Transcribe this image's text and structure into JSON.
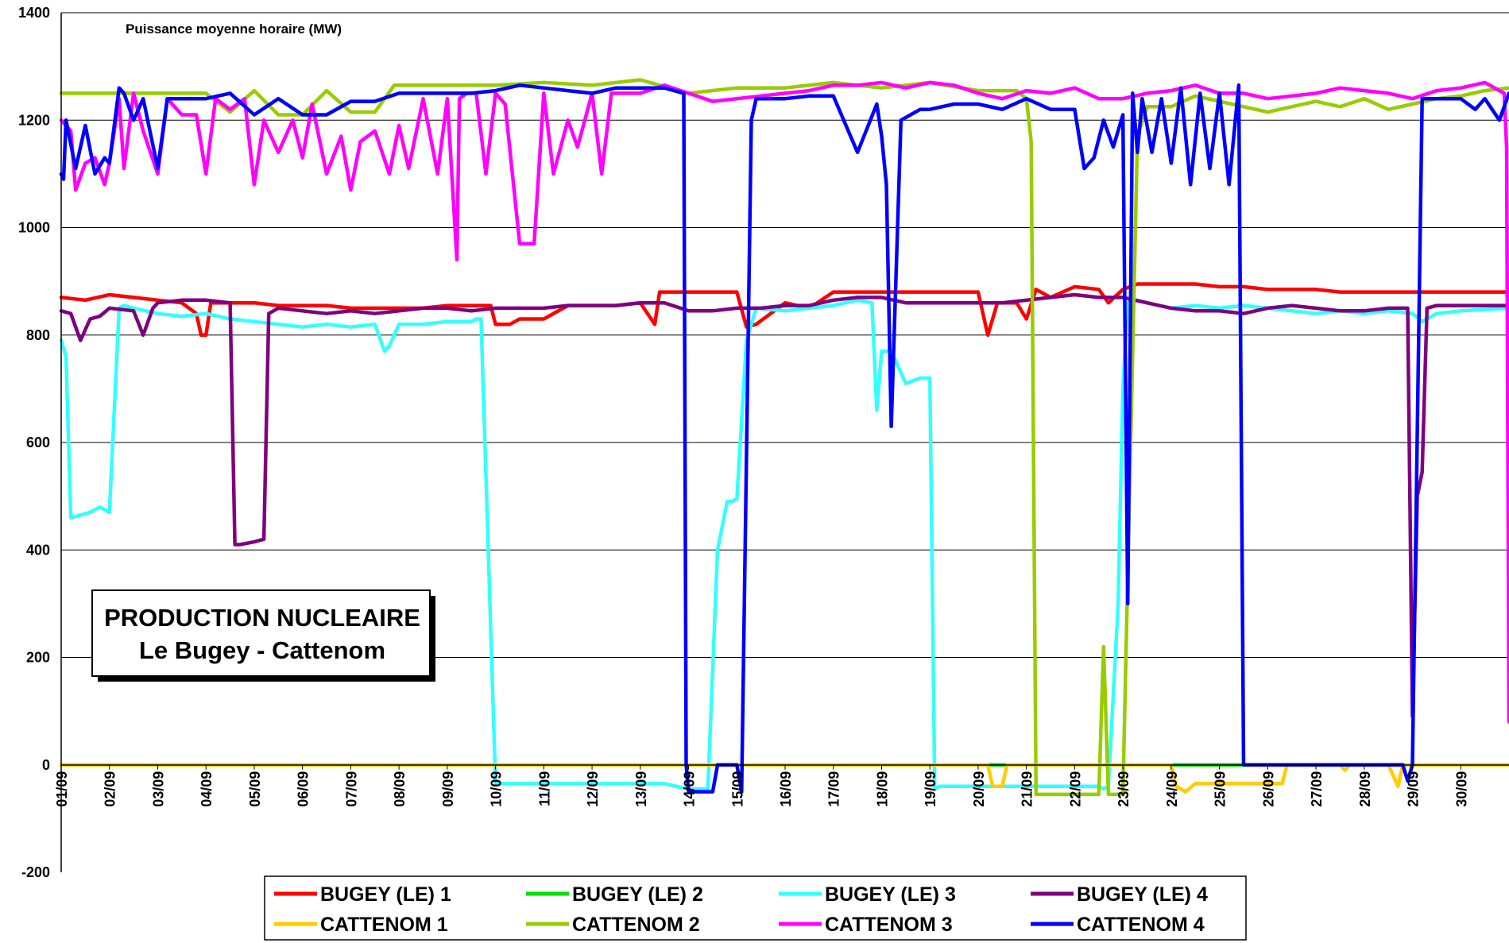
{
  "chart_data": {
    "type": "line",
    "ylabel": "Puissance moyenne horaire (MW)",
    "annotation": [
      "PRODUCTION NUCLEAIRE",
      "Le Bugey - Cattenom"
    ],
    "ylim": [
      -200,
      1400
    ],
    "yticks": [
      -200,
      0,
      200,
      400,
      600,
      800,
      1000,
      1200,
      1400
    ],
    "xlim": [
      1,
      31
    ],
    "categories": [
      "01/09",
      "02/09",
      "03/09",
      "04/09",
      "05/09",
      "06/09",
      "07/09",
      "08/09",
      "09/09",
      "10/09",
      "11/09",
      "12/09",
      "13/09",
      "14/09",
      "15/09",
      "16/09",
      "17/09",
      "18/09",
      "19/09",
      "20/09",
      "21/09",
      "22/09",
      "23/09",
      "24/09",
      "25/09",
      "26/09",
      "27/09",
      "28/09",
      "29/09",
      "30/09"
    ],
    "grid": "horizontal",
    "legend_position": "bottom",
    "series": [
      {
        "name": "BUGEY (LE) 1",
        "color": "#ff0000",
        "x": [
          1,
          1.5,
          2,
          2.5,
          3,
          3.5,
          3.8,
          3.9,
          4.0,
          4.1,
          4.5,
          5,
          5.5,
          6,
          6.5,
          7,
          7.5,
          8,
          8.5,
          9,
          9.5,
          9.9,
          10,
          10.3,
          10.5,
          11,
          11.5,
          12,
          12.5,
          13,
          13.3,
          13.4,
          14,
          14.5,
          15,
          15.2,
          15.4,
          16,
          16.5,
          17,
          17.5,
          18,
          18.5,
          19,
          19.5,
          20,
          20.2,
          20.4,
          20.6,
          20.8,
          21.0,
          21.2,
          21.5,
          22,
          22.5,
          22.7,
          23,
          23.3,
          23.5,
          24,
          24.5,
          25,
          25.5,
          26,
          26.5,
          27,
          27.5,
          28,
          28.5,
          29,
          29.5,
          30,
          30.5,
          31
        ],
        "values": [
          870,
          865,
          875,
          870,
          865,
          860,
          840,
          800,
          800,
          860,
          860,
          860,
          855,
          855,
          855,
          850,
          850,
          850,
          850,
          855,
          855,
          855,
          820,
          820,
          830,
          830,
          855,
          855,
          855,
          860,
          820,
          880,
          880,
          880,
          880,
          815,
          820,
          860,
          850,
          880,
          880,
          880,
          880,
          880,
          880,
          880,
          800,
          860,
          860,
          860,
          830,
          885,
          870,
          890,
          885,
          860,
          885,
          895,
          895,
          895,
          895,
          890,
          890,
          885,
          885,
          885,
          880,
          880,
          880,
          880,
          880,
          880,
          880,
          880
        ]
      },
      {
        "name": "BUGEY (LE) 2",
        "color": "#00e000",
        "x": [
          1,
          20.3,
          20.5,
          21,
          24,
          24.5,
          25,
          25.5,
          26,
          27,
          28,
          29,
          30,
          31
        ],
        "values": [
          0,
          0,
          0,
          0,
          0,
          0,
          0,
          0,
          0,
          0,
          0,
          0,
          0,
          0
        ]
      },
      {
        "name": "BUGEY (LE) 3",
        "color": "#33ffff",
        "x": [
          1,
          1.1,
          1.2,
          1.4,
          1.6,
          1.8,
          2.0,
          2.2,
          2.3,
          2.5,
          3,
          3.5,
          4,
          4.5,
          5,
          5.5,
          6,
          6.5,
          7,
          7.5,
          7.7,
          7.8,
          8,
          8.5,
          9,
          9.5,
          9.6,
          9.7,
          10,
          11,
          12,
          12.5,
          13,
          13.5,
          14,
          14.1,
          14.2,
          14.4,
          14.6,
          14.8,
          14.9,
          15.0,
          15.2,
          15.4,
          16,
          16.5,
          17,
          17.5,
          17.8,
          17.9,
          18.0,
          18.1,
          18.2,
          18.5,
          18.8,
          19,
          19.1,
          19.2,
          20,
          21,
          22,
          22.5,
          22.6,
          22.7,
          22.9,
          23.0,
          23.1,
          23.3,
          23.5,
          24,
          24.5,
          25,
          25.5,
          26,
          26.5,
          27,
          27.5,
          28,
          28.5,
          29,
          29.2,
          29.5,
          30,
          31
        ],
        "values": [
          790,
          760,
          460,
          465,
          470,
          480,
          470,
          850,
          855,
          850,
          840,
          835,
          840,
          830,
          825,
          820,
          815,
          820,
          815,
          820,
          770,
          780,
          820,
          820,
          825,
          825,
          830,
          830,
          -35,
          -35,
          -35,
          -35,
          -35,
          -35,
          -45,
          -45,
          -45,
          -45,
          400,
          490,
          490,
          495,
          790,
          850,
          845,
          850,
          855,
          865,
          860,
          660,
          770,
          770,
          770,
          710,
          720,
          720,
          -45,
          -40,
          -40,
          -40,
          -40,
          -40,
          -45,
          -40,
          300,
          700,
          860,
          865,
          860,
          850,
          855,
          850,
          855,
          850,
          845,
          840,
          845,
          840,
          845,
          840,
          825,
          840,
          845,
          850
        ]
      },
      {
        "name": "BUGEY (LE) 4",
        "color": "#7f007f",
        "x": [
          1,
          1.2,
          1.4,
          1.6,
          1.8,
          2,
          2.5,
          2.7,
          2.9,
          3,
          3.5,
          4,
          4.5,
          4.6,
          4.7,
          5,
          5.2,
          5.3,
          5.5,
          6,
          6.5,
          7,
          7.5,
          8,
          8.5,
          9,
          9.5,
          10,
          10.5,
          11,
          11.5,
          12,
          12.5,
          13,
          13.5,
          14,
          14.5,
          15,
          15.5,
          16,
          16.5,
          17,
          17.5,
          18,
          18.5,
          19,
          19.5,
          20,
          20.5,
          21,
          21.5,
          22,
          22.5,
          23,
          23.5,
          24,
          24.5,
          25,
          25.5,
          26,
          26.5,
          27,
          27.5,
          28,
          28.5,
          28.9,
          29.0,
          29.1,
          29.2,
          29.3,
          29.5,
          30,
          30.5,
          31
        ],
        "values": [
          845,
          840,
          790,
          830,
          835,
          850,
          845,
          800,
          850,
          860,
          865,
          865,
          860,
          410,
          410,
          415,
          420,
          840,
          850,
          845,
          840,
          845,
          840,
          845,
          850,
          850,
          845,
          850,
          850,
          850,
          855,
          855,
          855,
          860,
          860,
          845,
          845,
          850,
          850,
          855,
          855,
          865,
          870,
          870,
          860,
          860,
          860,
          860,
          860,
          865,
          870,
          875,
          870,
          870,
          860,
          850,
          845,
          845,
          840,
          850,
          855,
          850,
          845,
          845,
          850,
          850,
          90,
          500,
          545,
          850,
          855,
          855,
          855,
          855
        ]
      },
      {
        "name": "CATTENOM 1",
        "color": "#ffcc00",
        "x": [
          1,
          20.2,
          20.3,
          20.5,
          20.6,
          21,
          24,
          24.1,
          24.3,
          24.5,
          25,
          25.5,
          26,
          26.3,
          26.4,
          26.5,
          27,
          27.5,
          27.6,
          27.7,
          28,
          28.5,
          28.7,
          28.8,
          29,
          30,
          31
        ],
        "values": [
          0,
          0,
          -40,
          -40,
          0,
          0,
          0,
          -40,
          -50,
          -35,
          -35,
          -35,
          -35,
          -35,
          0,
          0,
          0,
          0,
          -10,
          0,
          0,
          0,
          -40,
          0,
          0,
          0,
          0
        ]
      },
      {
        "name": "CATTENOM 2",
        "color": "#99cc00",
        "x": [
          1,
          2,
          3,
          3.5,
          4,
          4.5,
          5,
          5.5,
          6,
          6.5,
          7,
          7.5,
          7.9,
          8,
          9,
          10,
          11,
          12,
          13,
          14,
          15,
          16,
          17,
          18,
          19,
          20,
          20.5,
          20.8,
          21.0,
          21.1,
          21.2,
          21.5,
          22,
          22.5,
          22.6,
          22.7,
          23.0,
          23.3,
          23.5,
          24,
          24.5,
          25,
          25.5,
          26,
          26.5,
          27,
          27.5,
          28,
          28.5,
          29,
          29.5,
          30,
          30.5,
          31
        ],
        "values": [
          1250,
          1250,
          1250,
          1250,
          1250,
          1215,
          1255,
          1210,
          1210,
          1255,
          1215,
          1215,
          1265,
          1265,
          1265,
          1265,
          1270,
          1265,
          1275,
          1250,
          1260,
          1260,
          1270,
          1260,
          1270,
          1255,
          1255,
          1255,
          1240,
          1160,
          -55,
          -55,
          -55,
          -55,
          220,
          -55,
          -55,
          1170,
          1225,
          1225,
          1245,
          1235,
          1225,
          1215,
          1225,
          1235,
          1225,
          1240,
          1220,
          1230,
          1240,
          1245,
          1255,
          1260
        ]
      },
      {
        "name": "CATTENOM 3",
        "color": "#ff00ff",
        "x": [
          1,
          1.2,
          1.3,
          1.5,
          1.7,
          1.9,
          2.0,
          2.2,
          2.3,
          2.5,
          2.7,
          3.0,
          3.2,
          3.5,
          3.8,
          4.0,
          4.2,
          4.5,
          4.8,
          5.0,
          5.2,
          5.5,
          5.8,
          6.0,
          6.2,
          6.5,
          6.8,
          7.0,
          7.2,
          7.5,
          7.8,
          8.0,
          8.2,
          8.5,
          8.8,
          9.0,
          9.2,
          9.25,
          9.4,
          9.6,
          9.8,
          10.0,
          10.2,
          10.5,
          10.6,
          10.8,
          11.0,
          11.2,
          11.5,
          11.7,
          12.0,
          12.2,
          12.4,
          12.6,
          13,
          13.5,
          14,
          14.5,
          15,
          15.5,
          16,
          16.5,
          17,
          17.5,
          18,
          18.5,
          19,
          19.5,
          20,
          20.5,
          21,
          21.5,
          22,
          22.5,
          23,
          23.5,
          24,
          24.5,
          25,
          25.5,
          26,
          26.5,
          27,
          27.5,
          28,
          28.5,
          29,
          29.5,
          30,
          30.5,
          30.9,
          30.95,
          31
        ],
        "values": [
          1200,
          1180,
          1070,
          1120,
          1130,
          1080,
          1120,
          1240,
          1110,
          1250,
          1180,
          1100,
          1240,
          1210,
          1210,
          1100,
          1240,
          1220,
          1240,
          1080,
          1200,
          1140,
          1200,
          1130,
          1230,
          1100,
          1170,
          1070,
          1160,
          1180,
          1100,
          1190,
          1110,
          1240,
          1100,
          1240,
          940,
          1240,
          1250,
          1250,
          1100,
          1250,
          1230,
          970,
          970,
          970,
          1250,
          1100,
          1200,
          1150,
          1250,
          1100,
          1250,
          1250,
          1250,
          1265,
          1250,
          1235,
          1240,
          1245,
          1250,
          1255,
          1265,
          1265,
          1270,
          1260,
          1270,
          1265,
          1250,
          1240,
          1255,
          1250,
          1260,
          1240,
          1240,
          1250,
          1255,
          1265,
          1250,
          1250,
          1240,
          1245,
          1250,
          1260,
          1255,
          1250,
          1240,
          1255,
          1260,
          1270,
          1250,
          1150,
          80
        ]
      },
      {
        "name": "CATTENOM 4",
        "color": "#0000ff",
        "x": [
          1,
          1.05,
          1.1,
          1.3,
          1.5,
          1.7,
          1.9,
          2.0,
          2.2,
          2.3,
          2.5,
          2.7,
          3.0,
          3.2,
          3.3,
          3.5,
          4,
          4.5,
          5,
          5.5,
          6,
          6.5,
          7,
          7.5,
          8,
          8.5,
          9,
          9.5,
          10,
          10.5,
          11,
          11.5,
          12,
          12.5,
          13,
          13.5,
          13.9,
          13.95,
          14.0,
          14.1,
          14.5,
          14.6,
          15.0,
          15.1,
          15.3,
          15.4,
          15.6,
          16,
          16.5,
          17,
          17.5,
          17.9,
          18.0,
          18.1,
          18.2,
          18.4,
          18.6,
          18.8,
          19,
          19.5,
          20,
          20.5,
          21,
          21.5,
          22,
          22.2,
          22.4,
          22.6,
          22.8,
          23.0,
          23.1,
          23.2,
          23.3,
          23.4,
          23.6,
          23.8,
          24,
          24.2,
          24.4,
          24.6,
          24.8,
          25,
          25.2,
          25.4,
          25.5,
          25.6,
          26,
          27,
          28,
          28.5,
          28.8,
          28.9,
          29.0,
          29.2,
          29.5,
          30,
          30.3,
          30.5,
          30.8,
          31
        ],
        "values": [
          1100,
          1090,
          1200,
          1110,
          1190,
          1100,
          1130,
          1120,
          1260,
          1250,
          1200,
          1240,
          1110,
          1240,
          1240,
          1240,
          1240,
          1250,
          1210,
          1240,
          1210,
          1210,
          1235,
          1235,
          1250,
          1250,
          1250,
          1250,
          1255,
          1265,
          1260,
          1255,
          1250,
          1260,
          1260,
          1260,
          1250,
          0,
          -50,
          -50,
          -50,
          0,
          0,
          -50,
          1200,
          1240,
          1240,
          1240,
          1245,
          1245,
          1140,
          1230,
          1170,
          1080,
          630,
          1200,
          1210,
          1220,
          1220,
          1230,
          1230,
          1220,
          1240,
          1220,
          1220,
          1110,
          1130,
          1200,
          1150,
          1210,
          300,
          1250,
          1140,
          1240,
          1140,
          1240,
          1120,
          1260,
          1080,
          1250,
          1110,
          1250,
          1080,
          1265,
          0,
          0,
          0,
          0,
          0,
          0,
          0,
          -30,
          0,
          1240,
          1240,
          1240,
          1220,
          1240,
          1200,
          1250
        ]
      }
    ]
  }
}
